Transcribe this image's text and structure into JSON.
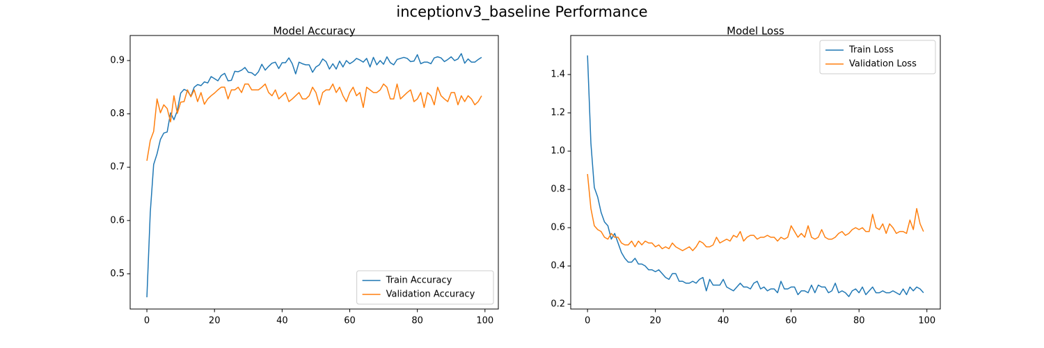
{
  "title": "inceptionv3_baseline Performance",
  "chart_data": [
    {
      "type": "line",
      "title": "Model Accuracy",
      "legend": "lower right",
      "grid": false,
      "x": [
        0,
        1,
        2,
        3,
        4,
        5,
        6,
        7,
        8,
        9,
        10,
        11,
        12,
        13,
        14,
        15,
        16,
        17,
        18,
        19,
        20,
        21,
        22,
        23,
        24,
        25,
        26,
        27,
        28,
        29,
        30,
        31,
        32,
        33,
        34,
        35,
        36,
        37,
        38,
        39,
        40,
        41,
        42,
        43,
        44,
        45,
        46,
        47,
        48,
        49,
        50,
        51,
        52,
        53,
        54,
        55,
        56,
        57,
        58,
        59,
        60,
        61,
        62,
        63,
        64,
        65,
        66,
        67,
        68,
        69,
        70,
        71,
        72,
        73,
        74,
        75,
        76,
        77,
        78,
        79,
        80,
        81,
        82,
        83,
        84,
        85,
        86,
        87,
        88,
        89,
        90,
        91,
        92,
        93,
        94,
        95,
        96,
        97,
        98,
        99
      ],
      "xlim": [
        -4.95,
        103.95
      ],
      "xticks": [
        0,
        20,
        40,
        60,
        80,
        100
      ],
      "ylim": [
        0.434,
        0.947
      ],
      "yticks": [
        0.5,
        0.6,
        0.7,
        0.8,
        0.9
      ],
      "series": [
        {
          "name": "Train Accuracy",
          "color": "#1f77b4",
          "values": [
            0.456,
            0.615,
            0.705,
            0.725,
            0.752,
            0.764,
            0.766,
            0.802,
            0.789,
            0.806,
            0.839,
            0.846,
            0.843,
            0.833,
            0.85,
            0.855,
            0.853,
            0.86,
            0.858,
            0.87,
            0.866,
            0.862,
            0.872,
            0.876,
            0.862,
            0.863,
            0.88,
            0.879,
            0.882,
            0.887,
            0.878,
            0.877,
            0.872,
            0.879,
            0.893,
            0.882,
            0.889,
            0.895,
            0.897,
            0.885,
            0.896,
            0.896,
            0.905,
            0.894,
            0.875,
            0.897,
            0.894,
            0.892,
            0.892,
            0.878,
            0.888,
            0.892,
            0.903,
            0.898,
            0.884,
            0.894,
            0.884,
            0.899,
            0.888,
            0.9,
            0.894,
            0.898,
            0.904,
            0.901,
            0.897,
            0.904,
            0.888,
            0.906,
            0.892,
            0.9,
            0.893,
            0.907,
            0.896,
            0.892,
            0.902,
            0.904,
            0.906,
            0.904,
            0.898,
            0.899,
            0.911,
            0.894,
            0.897,
            0.897,
            0.894,
            0.905,
            0.907,
            0.905,
            0.898,
            0.902,
            0.907,
            0.9,
            0.903,
            0.913,
            0.895,
            0.903,
            0.897,
            0.897,
            0.902,
            0.906
          ]
        },
        {
          "name": "Validation Accuracy",
          "color": "#ff7f0e",
          "values": [
            0.712,
            0.75,
            0.767,
            0.828,
            0.802,
            0.817,
            0.81,
            0.785,
            0.834,
            0.801,
            0.822,
            0.823,
            0.845,
            0.832,
            0.845,
            0.823,
            0.84,
            0.818,
            0.828,
            0.834,
            0.839,
            0.845,
            0.85,
            0.85,
            0.828,
            0.845,
            0.845,
            0.85,
            0.84,
            0.856,
            0.856,
            0.845,
            0.845,
            0.845,
            0.85,
            0.856,
            0.84,
            0.834,
            0.845,
            0.828,
            0.834,
            0.84,
            0.823,
            0.828,
            0.834,
            0.84,
            0.828,
            0.828,
            0.834,
            0.85,
            0.84,
            0.817,
            0.84,
            0.845,
            0.845,
            0.856,
            0.84,
            0.85,
            0.834,
            0.823,
            0.84,
            0.85,
            0.834,
            0.84,
            0.812,
            0.85,
            0.845,
            0.84,
            0.84,
            0.845,
            0.856,
            0.85,
            0.828,
            0.828,
            0.856,
            0.828,
            0.834,
            0.84,
            0.845,
            0.823,
            0.828,
            0.84,
            0.812,
            0.84,
            0.834,
            0.817,
            0.85,
            0.834,
            0.828,
            0.823,
            0.84,
            0.84,
            0.817,
            0.834,
            0.823,
            0.834,
            0.828,
            0.817,
            0.823,
            0.834
          ]
        }
      ]
    },
    {
      "type": "line",
      "title": "Model Loss",
      "legend": "upper right",
      "grid": false,
      "x": [
        0,
        1,
        2,
        3,
        4,
        5,
        6,
        7,
        8,
        9,
        10,
        11,
        12,
        13,
        14,
        15,
        16,
        17,
        18,
        19,
        20,
        21,
        22,
        23,
        24,
        25,
        26,
        27,
        28,
        29,
        30,
        31,
        32,
        33,
        34,
        35,
        36,
        37,
        38,
        39,
        40,
        41,
        42,
        43,
        44,
        45,
        46,
        47,
        48,
        49,
        50,
        51,
        52,
        53,
        54,
        55,
        56,
        57,
        58,
        59,
        60,
        61,
        62,
        63,
        64,
        65,
        66,
        67,
        68,
        69,
        70,
        71,
        72,
        73,
        74,
        75,
        76,
        77,
        78,
        79,
        80,
        81,
        82,
        83,
        84,
        85,
        86,
        87,
        88,
        89,
        90,
        91,
        92,
        93,
        94,
        95,
        96,
        97,
        98,
        99
      ],
      "xlim": [
        -4.95,
        103.95
      ],
      "xticks": [
        0,
        20,
        40,
        60,
        80,
        100
      ],
      "ylim": [
        0.175,
        1.604
      ],
      "yticks": [
        0.2,
        0.4,
        0.6,
        0.8,
        {
          "value": 1.0,
          "label": "1.0"
        },
        1.2,
        1.4
      ],
      "series": [
        {
          "name": "Train Loss",
          "color": "#1f77b4",
          "values": [
            1.5,
            1.04,
            0.81,
            0.76,
            0.68,
            0.63,
            0.61,
            0.54,
            0.57,
            0.52,
            0.47,
            0.44,
            0.42,
            0.42,
            0.44,
            0.41,
            0.41,
            0.4,
            0.38,
            0.38,
            0.37,
            0.38,
            0.36,
            0.34,
            0.33,
            0.36,
            0.36,
            0.32,
            0.32,
            0.31,
            0.31,
            0.32,
            0.31,
            0.33,
            0.34,
            0.27,
            0.33,
            0.3,
            0.3,
            0.3,
            0.33,
            0.29,
            0.28,
            0.27,
            0.29,
            0.31,
            0.29,
            0.29,
            0.28,
            0.31,
            0.32,
            0.28,
            0.29,
            0.27,
            0.28,
            0.28,
            0.26,
            0.32,
            0.28,
            0.28,
            0.29,
            0.29,
            0.25,
            0.27,
            0.27,
            0.26,
            0.3,
            0.26,
            0.3,
            0.29,
            0.29,
            0.26,
            0.27,
            0.31,
            0.26,
            0.27,
            0.26,
            0.24,
            0.27,
            0.28,
            0.26,
            0.29,
            0.25,
            0.27,
            0.29,
            0.26,
            0.26,
            0.27,
            0.26,
            0.26,
            0.27,
            0.26,
            0.25,
            0.28,
            0.25,
            0.29,
            0.27,
            0.29,
            0.28,
            0.26
          ]
        },
        {
          "name": "Validation Loss",
          "color": "#ff7f0e",
          "values": [
            0.88,
            0.7,
            0.61,
            0.59,
            0.58,
            0.55,
            0.54,
            0.57,
            0.55,
            0.55,
            0.52,
            0.51,
            0.51,
            0.53,
            0.5,
            0.53,
            0.51,
            0.53,
            0.52,
            0.52,
            0.5,
            0.51,
            0.49,
            0.5,
            0.49,
            0.52,
            0.5,
            0.49,
            0.48,
            0.49,
            0.5,
            0.48,
            0.5,
            0.53,
            0.52,
            0.5,
            0.5,
            0.51,
            0.55,
            0.52,
            0.53,
            0.54,
            0.53,
            0.56,
            0.55,
            0.58,
            0.53,
            0.55,
            0.56,
            0.56,
            0.54,
            0.55,
            0.55,
            0.56,
            0.55,
            0.55,
            0.53,
            0.55,
            0.54,
            0.55,
            0.61,
            0.58,
            0.55,
            0.57,
            0.55,
            0.61,
            0.55,
            0.54,
            0.55,
            0.59,
            0.55,
            0.54,
            0.54,
            0.55,
            0.57,
            0.58,
            0.56,
            0.57,
            0.59,
            0.6,
            0.59,
            0.6,
            0.58,
            0.58,
            0.67,
            0.6,
            0.59,
            0.62,
            0.57,
            0.62,
            0.6,
            0.57,
            0.58,
            0.58,
            0.57,
            0.64,
            0.59,
            0.7,
            0.62,
            0.58
          ]
        }
      ]
    }
  ]
}
